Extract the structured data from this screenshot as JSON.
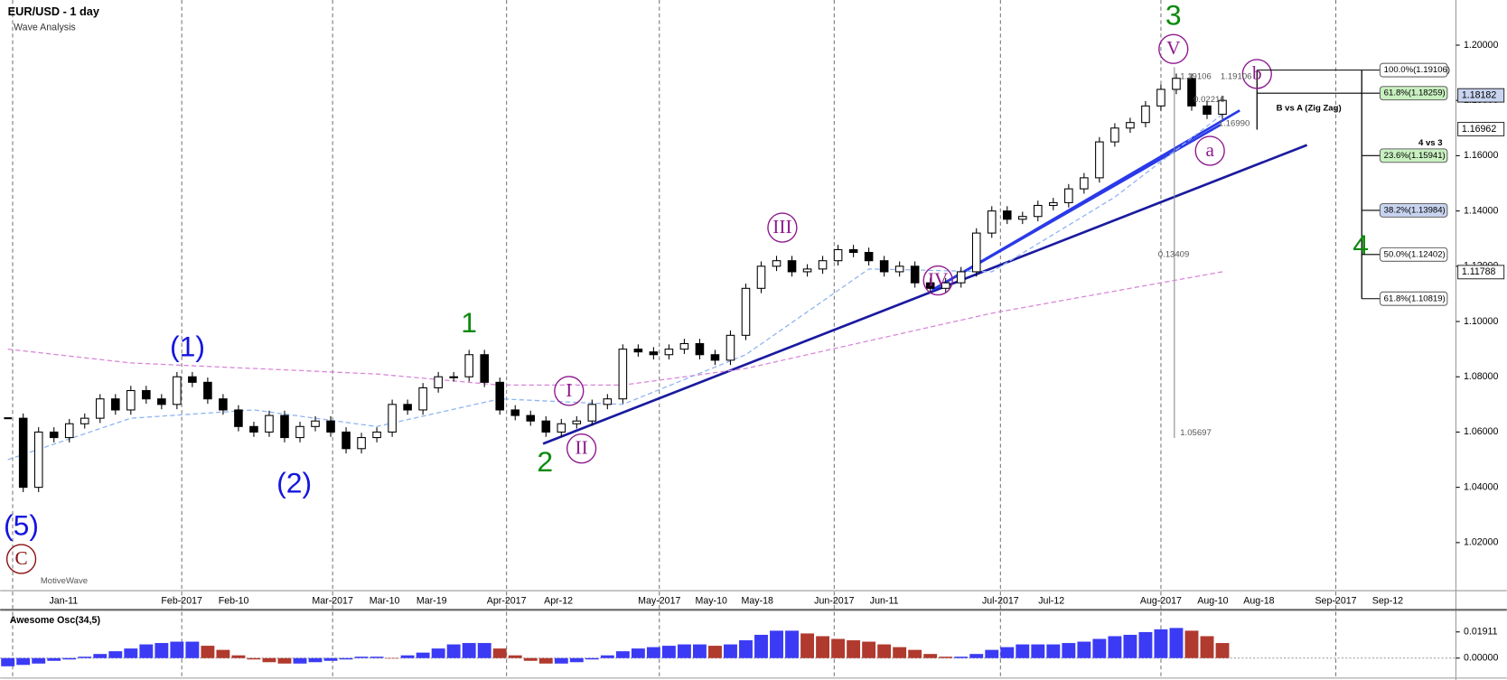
{
  "chart_data": {
    "type": "candlestick",
    "title": "EUR/USD - 1 day",
    "subtitle": "Wave Analysis",
    "ylim": [
      1.0026,
      1.2146
    ],
    "yticks": [
      {
        "value": 1.02,
        "label": "1.02000"
      },
      {
        "value": 1.04,
        "label": "1.04000"
      },
      {
        "value": 1.06,
        "label": "1.06000"
      },
      {
        "value": 1.08,
        "label": "1.08000"
      },
      {
        "value": 1.1,
        "label": "1.10000"
      },
      {
        "value": 1.12,
        "label": "1.12000"
      },
      {
        "value": 1.14,
        "label": "1.14000"
      },
      {
        "value": 1.16,
        "label": "1.16000"
      },
      {
        "value": 1.18,
        "label": "1.18000"
      },
      {
        "value": 1.2,
        "label": "1.20000"
      }
    ],
    "x_labels": [
      "Jan-11",
      "Feb-2017",
      "Feb-10",
      "Mar-2017",
      "Mar-10",
      "Mar-19",
      "Apr-2017",
      "Apr-12",
      "May-2017",
      "May-10",
      "May-18",
      "Jun-2017",
      "Jun-11",
      "Jul-2017",
      "Jul-12",
      "Aug-2017",
      "Aug-10",
      "Aug-18",
      "Sep-2017",
      "Sep-12"
    ],
    "up_color": "#ffffff",
    "down_color": "#000000",
    "closes": [
      1.065,
      1.04,
      1.06,
      1.058,
      1.063,
      1.065,
      1.072,
      1.068,
      1.075,
      1.072,
      1.07,
      1.08,
      1.078,
      1.072,
      1.068,
      1.062,
      1.06,
      1.066,
      1.058,
      1.062,
      1.064,
      1.06,
      1.054,
      1.058,
      1.06,
      1.07,
      1.068,
      1.076,
      1.08,
      1.08,
      1.088,
      1.078,
      1.068,
      1.066,
      1.064,
      1.06,
      1.063,
      1.064,
      1.07,
      1.072,
      1.09,
      1.089,
      1.088,
      1.09,
      1.092,
      1.088,
      1.086,
      1.095,
      1.112,
      1.12,
      1.122,
      1.118,
      1.119,
      1.122,
      1.126,
      1.125,
      1.122,
      1.118,
      1.12,
      1.114,
      1.112,
      1.114,
      1.118,
      1.132,
      1.14,
      1.137,
      1.138,
      1.142,
      1.143,
      1.148,
      1.152,
      1.165,
      1.17,
      1.172,
      1.178,
      1.184,
      1.188,
      1.178,
      1.175,
      1.18
    ],
    "moving_averages": [
      {
        "color": "#d986d9",
        "x": [
          0,
          8,
          16,
          24,
          32,
          40,
          48,
          56,
          64,
          72,
          79
        ],
        "values": [
          1.09,
          1.085,
          1.083,
          1.081,
          1.077,
          1.077,
          1.083,
          1.093,
          1.103,
          1.111,
          1.118
        ]
      },
      {
        "color": "#8fb4f0",
        "x": [
          0,
          8,
          16,
          24,
          32,
          40,
          48,
          56,
          64,
          72,
          79
        ],
        "values": [
          1.05,
          1.065,
          1.068,
          1.062,
          1.072,
          1.07,
          1.088,
          1.119,
          1.118,
          1.145,
          1.175
        ]
      }
    ],
    "price_tags": [
      {
        "value": 1.18182,
        "label": "1.18182",
        "color": "#c8d4f0"
      },
      {
        "value": 1.16962,
        "label": "1.16962",
        "color": "#ffffff"
      },
      {
        "value": 1.11788,
        "label": "1.11788",
        "color": "#ffffff"
      }
    ],
    "waves": [
      {
        "text": "(5)",
        "style": "blue"
      },
      {
        "text": "C",
        "style": "circle-red"
      },
      {
        "text": "(1)",
        "style": "blue"
      },
      {
        "text": "(2)",
        "style": "blue"
      },
      {
        "text": "1",
        "style": "green"
      },
      {
        "text": "2",
        "style": "green"
      },
      {
        "text": "I",
        "style": "circle"
      },
      {
        "text": "II",
        "style": "circle"
      },
      {
        "text": "III",
        "style": "circle"
      },
      {
        "text": "IV",
        "style": "circle"
      },
      {
        "text": "V",
        "style": "circle"
      },
      {
        "text": "3",
        "style": "green"
      },
      {
        "text": "a",
        "style": "circle"
      },
      {
        "text": "b",
        "style": "circle"
      },
      {
        "text": "4",
        "style": "green"
      }
    ],
    "fib_labels": [
      {
        "text": "100.0%(1.19106)",
        "color": "#ffffff"
      },
      {
        "text": "61.8%(1.18259)",
        "color": "#c8f0c0"
      },
      {
        "text": "23.6%(1.15941)",
        "color": "#c8f0c0"
      },
      {
        "text": "38.2%(1.13984)",
        "color": "#c8d4f0"
      },
      {
        "text": "50.0%(1.12402)",
        "color": "#ffffff"
      },
      {
        "text": "61.8%(1.10819)",
        "color": "#ffffff"
      }
    ],
    "notes": [
      "4 vs 3",
      "B vs A (Zig Zag)",
      "0.13409",
      "1.05697",
      "0.02216",
      "1.19106",
      "1.19106",
      "1.16990",
      "MotiveWave"
    ],
    "oscillator": {
      "title": "Awesome Osc(34,5)",
      "ylim": [
        -0.0125,
        0.0338
      ],
      "yticks": [
        {
          "value": 0.01911,
          "label": "0.01911"
        },
        {
          "value": 0,
          "label": "0.00000"
        }
      ],
      "up_color": "#3b3bf5",
      "down_color": "#b03a2e",
      "values": [
        -0.006,
        -0.005,
        -0.004,
        -0.002,
        -0.001,
        0.001,
        0.003,
        0.005,
        0.007,
        0.01,
        0.011,
        0.012,
        0.012,
        0.009,
        0.006,
        0.002,
        -0.001,
        -0.003,
        -0.004,
        -0.004,
        -0.003,
        -0.002,
        -0.001,
        0.001,
        0.001,
        0.0,
        0.002,
        0.004,
        0.007,
        0.01,
        0.011,
        0.011,
        0.007,
        0.002,
        -0.002,
        -0.004,
        -0.004,
        -0.003,
        -0.001,
        0.002,
        0.005,
        0.007,
        0.008,
        0.009,
        0.01,
        0.01,
        0.009,
        0.01,
        0.013,
        0.017,
        0.02,
        0.02,
        0.018,
        0.016,
        0.014,
        0.013,
        0.012,
        0.01,
        0.008,
        0.006,
        0.003,
        0.001,
        0.001,
        0.003,
        0.006,
        0.008,
        0.01,
        0.01,
        0.01,
        0.011,
        0.012,
        0.014,
        0.016,
        0.017,
        0.019,
        0.021,
        0.022,
        0.02,
        0.016,
        0.011
      ]
    }
  }
}
